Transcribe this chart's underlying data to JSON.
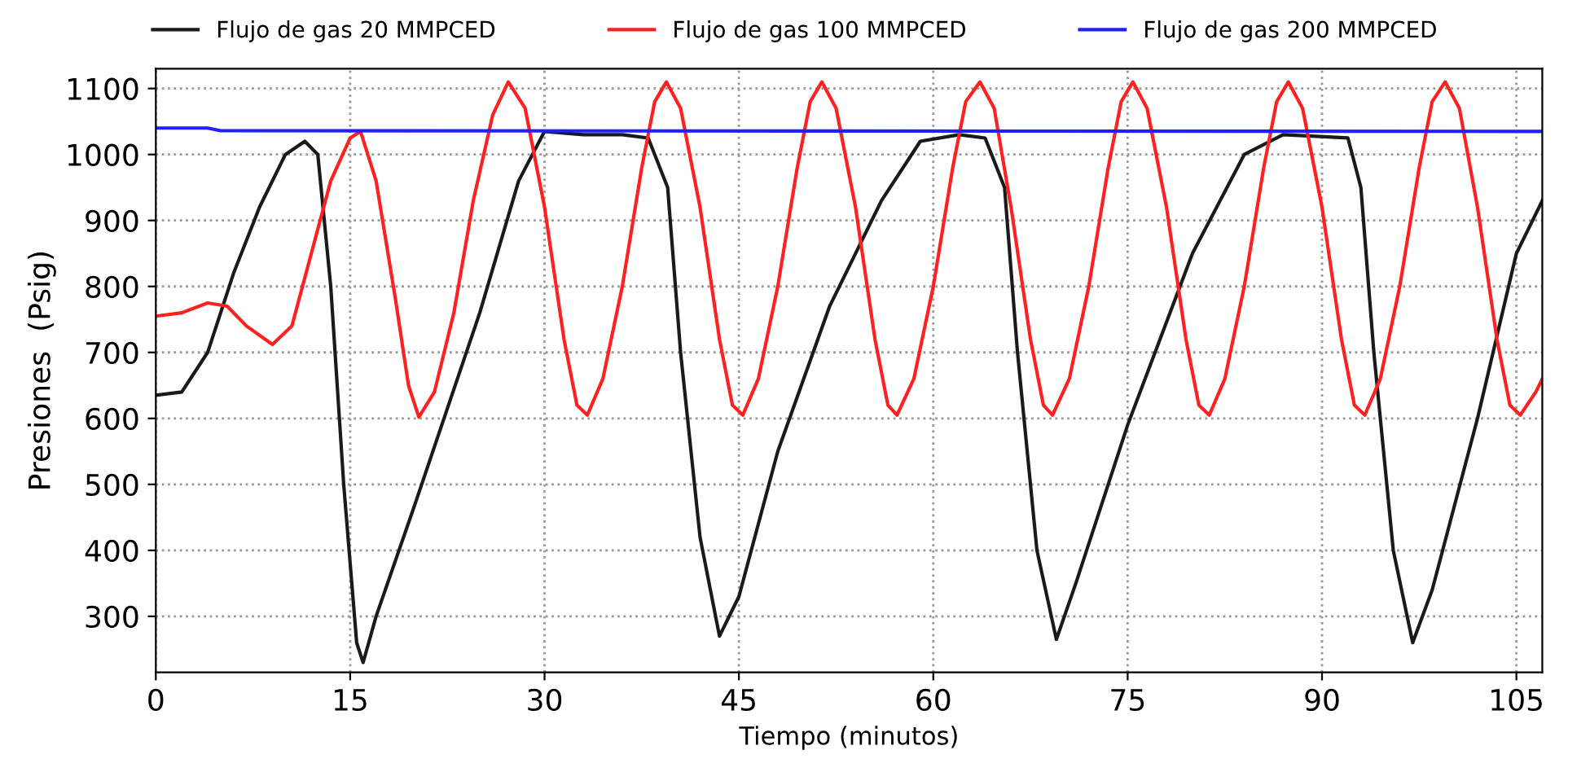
{
  "chart_data": {
    "type": "line",
    "xlabel": "Tiempo (minutos)",
    "ylabel": "Presiones  (Psig)",
    "xlim": [
      0,
      107
    ],
    "xticks": [
      0,
      15,
      30,
      45,
      60,
      75,
      90,
      105
    ],
    "ylim": [
      215,
      1130
    ],
    "yticks": [
      300,
      400,
      500,
      600,
      700,
      800,
      900,
      1000,
      1100
    ],
    "grid": true,
    "legend": "top",
    "line_style": "solid",
    "marker": "none",
    "series": [
      {
        "name": "Flujo de gas 20 MMPCED",
        "color": "#1a1a1a",
        "x": [
          0,
          2,
          4,
          6,
          8,
          10,
          11.5,
          12.5,
          13.5,
          14.5,
          15.5,
          16,
          17,
          20,
          25,
          28,
          30,
          33,
          36,
          38,
          39.5,
          40.5,
          42,
          43.5,
          45,
          48,
          52,
          56,
          59,
          62,
          64,
          65.5,
          66.5,
          68,
          69.5,
          71,
          75,
          80,
          84,
          87,
          92,
          93,
          94,
          95.5,
          97,
          98.5,
          102,
          105,
          107
        ],
        "values": [
          635,
          640,
          700,
          820,
          920,
          1000,
          1020,
          1000,
          800,
          500,
          260,
          230,
          300,
          470,
          760,
          960,
          1035,
          1030,
          1030,
          1025,
          950,
          700,
          420,
          270,
          330,
          550,
          770,
          930,
          1020,
          1030,
          1025,
          950,
          700,
          400,
          265,
          350,
          590,
          850,
          1000,
          1030,
          1025,
          950,
          700,
          400,
          260,
          340,
          600,
          850,
          930
        ]
      },
      {
        "name": "Flujo de gas 100 MMPCED",
        "color": "#ff2020",
        "x": [
          0,
          2,
          4,
          5.5,
          7,
          9,
          10.5,
          12,
          13.5,
          15,
          15.8,
          17,
          18.5,
          19.5,
          20.3,
          21.5,
          23,
          24.5,
          26,
          27.2,
          28.5,
          30,
          31.5,
          32.5,
          33.3,
          34.5,
          36,
          37.5,
          38.5,
          39.4,
          40.5,
          42,
          43.5,
          44.5,
          45.3,
          46.5,
          48,
          49.5,
          50.5,
          51.4,
          52.5,
          54,
          55.5,
          56.5,
          57.2,
          58.5,
          60,
          61.5,
          62.5,
          63.6,
          64.7,
          66,
          67.5,
          68.5,
          69.2,
          70.5,
          72,
          73.5,
          74.5,
          75.4,
          76.5,
          78,
          79.5,
          80.5,
          81.3,
          82.5,
          84,
          85.5,
          86.5,
          87.4,
          88.5,
          90,
          91.5,
          92.5,
          93.3,
          94.5,
          96,
          97.5,
          98.5,
          99.5,
          100.6,
          102,
          103.5,
          104.5,
          105.3,
          106.5,
          107
        ],
        "values": [
          755,
          760,
          775,
          770,
          740,
          712,
          740,
          850,
          960,
          1025,
          1035,
          960,
          780,
          650,
          602,
          640,
          760,
          930,
          1060,
          1110,
          1070,
          920,
          720,
          620,
          605,
          660,
          800,
          980,
          1080,
          1110,
          1070,
          920,
          720,
          620,
          605,
          660,
          800,
          980,
          1080,
          1110,
          1070,
          920,
          720,
          620,
          605,
          660,
          800,
          980,
          1080,
          1110,
          1070,
          920,
          720,
          620,
          605,
          660,
          800,
          980,
          1080,
          1110,
          1070,
          920,
          720,
          620,
          605,
          660,
          800,
          980,
          1080,
          1110,
          1070,
          920,
          720,
          620,
          605,
          660,
          800,
          980,
          1080,
          1110,
          1070,
          920,
          720,
          620,
          605,
          640,
          660
        ]
      },
      {
        "name": "Flujo de gas 200 MMPCED",
        "color": "#1f1fff",
        "x": [
          0,
          4,
          5,
          107
        ],
        "values": [
          1040,
          1040,
          1036,
          1035
        ]
      }
    ]
  }
}
